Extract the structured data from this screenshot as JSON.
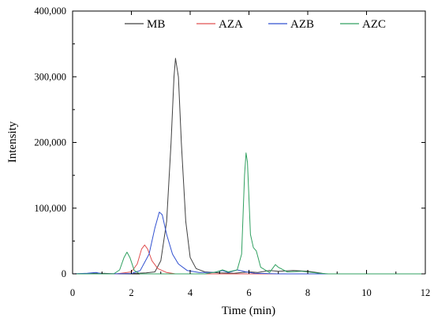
{
  "chart_data": {
    "type": "line",
    "title": "",
    "xlabel": "Time (min)",
    "ylabel": "Intensity",
    "xlim": [
      0,
      12
    ],
    "ylim": [
      0,
      400000
    ],
    "xticks": [
      0,
      2,
      4,
      6,
      8,
      10,
      12
    ],
    "xtick_labels": [
      "0",
      "2",
      "4",
      "6",
      "8",
      "10",
      "12"
    ],
    "yticks": [
      0,
      100000,
      200000,
      300000,
      400000
    ],
    "ytick_labels": [
      "0",
      "100,000",
      "200,000",
      "300,000",
      "400,000"
    ],
    "grid": false,
    "legend_position": "top-center",
    "series": [
      {
        "name": "MB",
        "color": "#404040",
        "points": [
          [
            0,
            0
          ],
          [
            0.5,
            500
          ],
          [
            1,
            1000
          ],
          [
            1.5,
            0
          ],
          [
            2,
            500
          ],
          [
            2.5,
            1500
          ],
          [
            2.8,
            3000
          ],
          [
            3.0,
            20000
          ],
          [
            3.2,
            80000
          ],
          [
            3.35,
            200000
          ],
          [
            3.45,
            300000
          ],
          [
            3.5,
            328000
          ],
          [
            3.6,
            300000
          ],
          [
            3.7,
            200000
          ],
          [
            3.85,
            80000
          ],
          [
            4.0,
            25000
          ],
          [
            4.2,
            8000
          ],
          [
            4.5,
            3000
          ],
          [
            5,
            1500
          ],
          [
            5.5,
            1000
          ],
          [
            6,
            3000
          ],
          [
            6.3,
            2000
          ],
          [
            6.7,
            5000
          ],
          [
            7,
            4000
          ],
          [
            7.5,
            5000
          ],
          [
            8,
            4000
          ],
          [
            8.3,
            2000
          ],
          [
            8.6,
            0
          ],
          [
            12,
            0
          ]
        ]
      },
      {
        "name": "AZA",
        "color": "#e05050",
        "points": [
          [
            0,
            0
          ],
          [
            1.5,
            0
          ],
          [
            2.0,
            3000
          ],
          [
            2.2,
            15000
          ],
          [
            2.35,
            38000
          ],
          [
            2.45,
            44000
          ],
          [
            2.55,
            38000
          ],
          [
            2.7,
            20000
          ],
          [
            2.9,
            8000
          ],
          [
            3.2,
            2000
          ],
          [
            3.5,
            0
          ],
          [
            5,
            0
          ],
          [
            12,
            0
          ]
        ]
      },
      {
        "name": "AZB",
        "color": "#3050d0",
        "points": [
          [
            0,
            0
          ],
          [
            0.5,
            1000
          ],
          [
            0.8,
            2000
          ],
          [
            1.0,
            0
          ],
          [
            2.0,
            500
          ],
          [
            2.3,
            5000
          ],
          [
            2.6,
            30000
          ],
          [
            2.8,
            70000
          ],
          [
            2.95,
            94000
          ],
          [
            3.05,
            90000
          ],
          [
            3.2,
            60000
          ],
          [
            3.4,
            30000
          ],
          [
            3.6,
            15000
          ],
          [
            3.9,
            5000
          ],
          [
            4.3,
            2000
          ],
          [
            4.8,
            2000
          ],
          [
            5.1,
            5000
          ],
          [
            5.3,
            2000
          ],
          [
            5.6,
            6000
          ],
          [
            5.9,
            3000
          ],
          [
            6.2,
            1000
          ],
          [
            7,
            0
          ],
          [
            12,
            0
          ]
        ]
      },
      {
        "name": "AZC",
        "color": "#30a060",
        "points": [
          [
            0,
            0
          ],
          [
            1.4,
            0
          ],
          [
            1.6,
            6000
          ],
          [
            1.75,
            25000
          ],
          [
            1.85,
            33000
          ],
          [
            1.95,
            25000
          ],
          [
            2.1,
            5000
          ],
          [
            2.3,
            0
          ],
          [
            4.5,
            0
          ],
          [
            4.9,
            3000
          ],
          [
            5.1,
            6000
          ],
          [
            5.3,
            3000
          ],
          [
            5.6,
            6000
          ],
          [
            5.75,
            30000
          ],
          [
            5.85,
            150000
          ],
          [
            5.9,
            184000
          ],
          [
            5.95,
            170000
          ],
          [
            6.05,
            60000
          ],
          [
            6.15,
            40000
          ],
          [
            6.25,
            35000
          ],
          [
            6.4,
            10000
          ],
          [
            6.7,
            2000
          ],
          [
            6.9,
            14000
          ],
          [
            7.0,
            10000
          ],
          [
            7.3,
            3000
          ],
          [
            7.8,
            4000
          ],
          [
            8.0,
            3000
          ],
          [
            8.4,
            1000
          ],
          [
            8.7,
            0
          ],
          [
            12,
            0
          ]
        ]
      }
    ]
  }
}
